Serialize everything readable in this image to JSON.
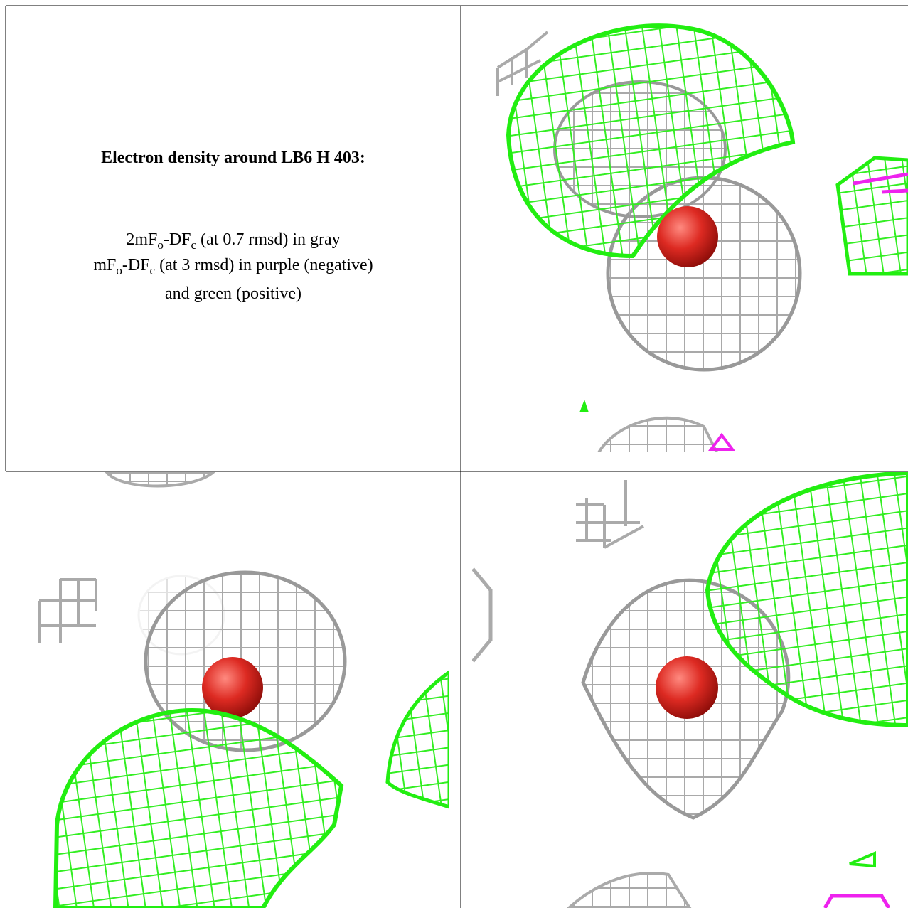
{
  "caption": {
    "title": "Electron density around LB6 H 403:",
    "line1": [
      "2mF",
      "o",
      "-DF",
      "c",
      " (at 0.7 rmsd) in gray"
    ],
    "line2": [
      "mF",
      "o",
      "-DF",
      "c",
      " (at 3 rmsd) in purple (negative)"
    ],
    "line3": "and green (positive)"
  }
}
